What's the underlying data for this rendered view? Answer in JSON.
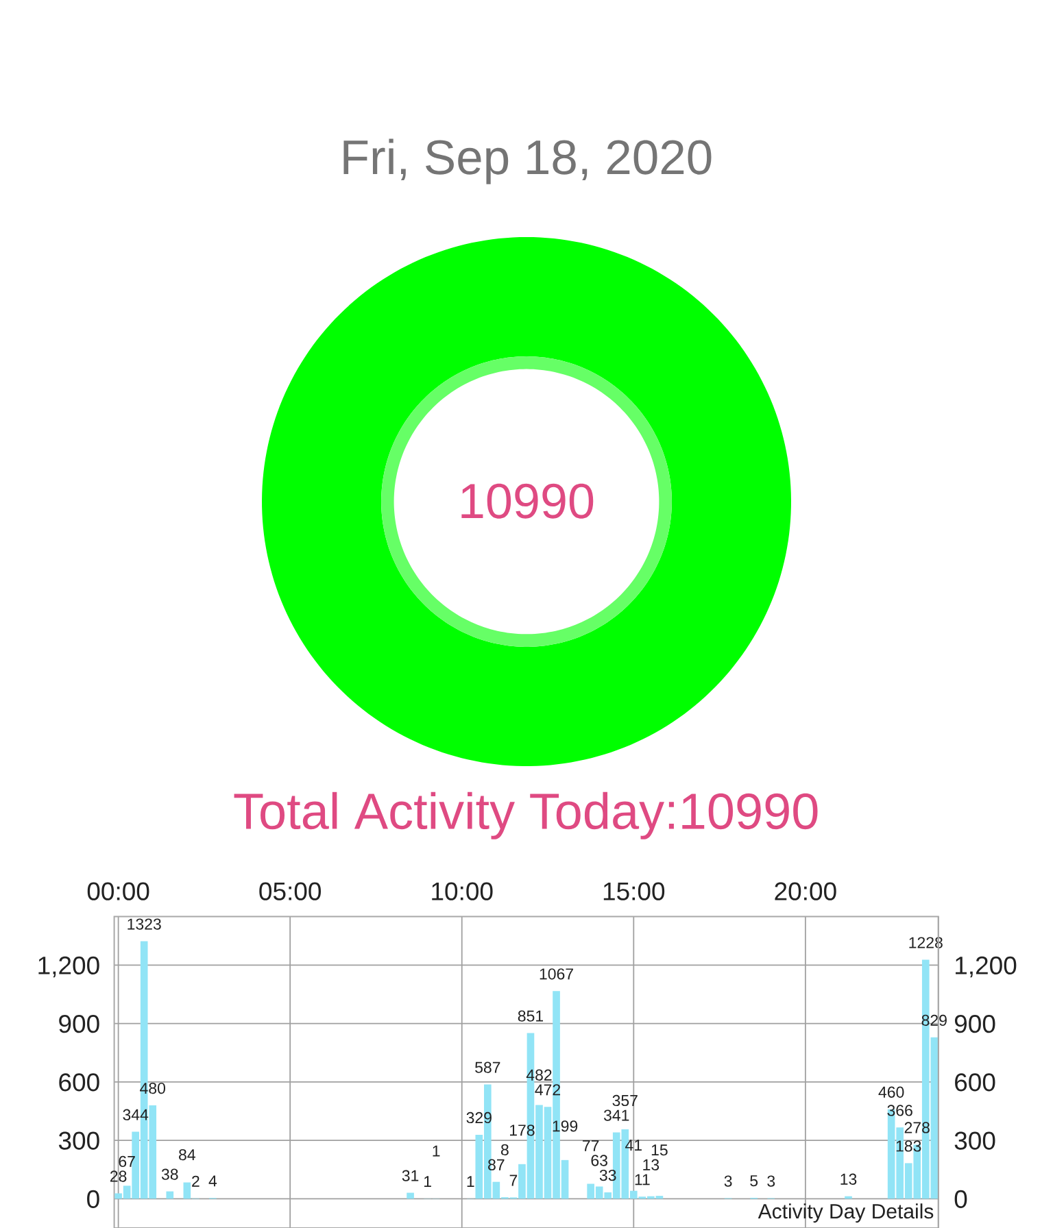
{
  "chart_data": [
    {
      "type": "donut",
      "title": "Fri, Sep 18, 2020",
      "categories": [
        null
      ],
      "values": [
        10990
      ],
      "colors": [
        "#00ff00"
      ],
      "data_labels": true
    },
    {
      "type": "bar",
      "title": "Total Activity Today:10990",
      "x": [
        0,
        0.25,
        0.5,
        0.75,
        1.0,
        1.5,
        2.0,
        2.25,
        2.75,
        8.5,
        9.0,
        9.25,
        10.25,
        10.5,
        10.75,
        11.0,
        11.25,
        11.5,
        11.75,
        12.0,
        12.25,
        12.5,
        12.75,
        13.0,
        13.75,
        14.0,
        14.25,
        14.5,
        14.75,
        15.0,
        15.25,
        15.5,
        15.75,
        17.75,
        18.5,
        19.0,
        21.25,
        22.5,
        22.75,
        23.0,
        23.25,
        23.5,
        23.75
      ],
      "values": [
        28,
        67,
        344,
        1323,
        480,
        38,
        84,
        2,
        4,
        31,
        1,
        1,
        1,
        329,
        587,
        87,
        8,
        7,
        178,
        851,
        482,
        472,
        1067,
        199,
        77,
        63,
        33,
        341,
        357,
        41,
        11,
        13,
        15,
        3,
        5,
        3,
        13,
        460,
        366,
        183,
        278,
        1228,
        829
      ],
      "color": "#91e4f6",
      "xlim": [
        -0.12,
        23.87
      ],
      "xticks": [
        {
          "value": 0,
          "label": "00:00"
        },
        {
          "value": 5,
          "label": "05:00"
        },
        {
          "value": 10,
          "label": "10:00"
        },
        {
          "value": 15,
          "label": "15:00"
        },
        {
          "value": 20,
          "label": "20:00"
        }
      ],
      "ylim": [
        -150,
        1450
      ],
      "yticks": [
        0,
        300,
        600,
        900,
        {
          "value": 1200,
          "label": "1,200"
        }
      ],
      "y2lim": [
        -150,
        1450
      ],
      "y2ticks": [
        0,
        300,
        600,
        900,
        {
          "value": 1200,
          "label": "1,200"
        }
      ],
      "grid": true,
      "data_labels": true,
      "annotations": [
        "Activity Day Details"
      ]
    }
  ]
}
